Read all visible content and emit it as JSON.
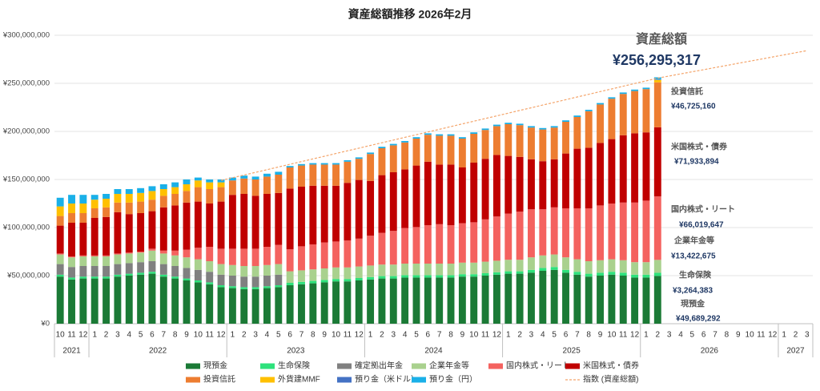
{
  "chart_data": {
    "type": "bar",
    "stacked": true,
    "title": "資産総額推移 2026年2月",
    "categories": [
      "10",
      "11",
      "12",
      "1",
      "2",
      "3",
      "4",
      "5",
      "6",
      "7",
      "8",
      "9",
      "10",
      "11",
      "12",
      "1",
      "2",
      "3",
      "4",
      "5",
      "6",
      "7",
      "8",
      "9",
      "10",
      "11",
      "12",
      "1",
      "2",
      "3",
      "4",
      "5",
      "6",
      "7",
      "8",
      "9",
      "10",
      "11",
      "12",
      "1",
      "2",
      "3",
      "4",
      "5",
      "6",
      "7",
      "8",
      "9",
      "10",
      "11",
      "12",
      "1",
      "2",
      "3",
      "4",
      "5",
      "6",
      "7",
      "8",
      "9",
      "10",
      "11",
      "12",
      "1",
      "2",
      "3"
    ],
    "year_groups": [
      {
        "label": "2021",
        "count": 3
      },
      {
        "label": "2022",
        "count": 12
      },
      {
        "label": "2023",
        "count": 12
      },
      {
        "label": "2024",
        "count": 12
      },
      {
        "label": "2025",
        "count": 12
      },
      {
        "label": "2026",
        "count": 12
      },
      {
        "label": "2027",
        "count": 3
      }
    ],
    "ylim": [
      0,
      300000000
    ],
    "yticks": [
      {
        "value": 0,
        "label": "¥0"
      },
      {
        "value": 50000000,
        "label": "¥50,000,000"
      },
      {
        "value": 100000000,
        "label": "¥100,000,000"
      },
      {
        "value": 150000000,
        "label": "¥150,000,000"
      },
      {
        "value": 200000000,
        "label": "¥200,000,000"
      },
      {
        "value": 250000000,
        "label": "¥250,000,000"
      },
      {
        "value": 300000000,
        "label": "¥300,000,000"
      }
    ],
    "grid": true,
    "legend": "bottom",
    "series": [
      {
        "name": "現預金",
        "color": "#1b7a36",
        "values": [
          49000000,
          46000000,
          47000000,
          47000000,
          47000000,
          49000000,
          50000000,
          51000000,
          52000000,
          49000000,
          47000000,
          45000000,
          43000000,
          41000000,
          38000000,
          37000000,
          36000000,
          36000000,
          37000000,
          38000000,
          40000000,
          41000000,
          42000000,
          43000000,
          44000000,
          44000000,
          45000000,
          46000000,
          47000000,
          47000000,
          48000000,
          48000000,
          48000000,
          48000000,
          48000000,
          49000000,
          49000000,
          50000000,
          51000000,
          52000000,
          52000000,
          53000000,
          55000000,
          56000000,
          53000000,
          51000000,
          49000000,
          50000000,
          51000000,
          50000000,
          48000000,
          48000000,
          49689292,
          null,
          null,
          null,
          null,
          null,
          null,
          null,
          null,
          null,
          null,
          null,
          null,
          null
        ],
        "value_labels": {
          "52": "¥49,689,292"
        }
      },
      {
        "name": "生命保険",
        "color": "#2ee27c",
        "values": [
          2000000,
          2000000,
          2000000,
          2000000,
          2000000,
          2000000,
          2000000,
          2000000,
          2000000,
          2000000,
          2000000,
          2000000,
          2000000,
          2000000,
          2000000,
          2000000,
          2000000,
          2000000,
          2000000,
          2000000,
          2500000,
          2500000,
          2500000,
          2500000,
          2500000,
          2500000,
          2500000,
          2500000,
          2500000,
          2500000,
          2500000,
          2500000,
          2500000,
          2500000,
          2500000,
          2500000,
          2500000,
          2500000,
          2500000,
          2500000,
          2500000,
          3000000,
          3000000,
          3000000,
          3000000,
          3000000,
          3000000,
          3000000,
          3000000,
          3000000,
          3000000,
          3000000,
          3264383,
          null,
          null,
          null,
          null,
          null,
          null,
          null,
          null,
          null,
          null,
          null,
          null,
          null
        ],
        "value_labels": {
          "52": "¥3,264,383"
        }
      },
      {
        "name": "確定拠出年金",
        "color": "#808080",
        "values": [
          11000000,
          11000000,
          11000000,
          11000000,
          11000000,
          11000000,
          11000000,
          11000000,
          11000000,
          11000000,
          11000000,
          11000000,
          11000000,
          11000000,
          11000000,
          11000000,
          11000000,
          11000000,
          11000000,
          11000000,
          0,
          0,
          0,
          0,
          0,
          0,
          0,
          0,
          0,
          0,
          0,
          0,
          0,
          0,
          0,
          0,
          0,
          0,
          0,
          0,
          0,
          0,
          0,
          0,
          0,
          0,
          0,
          0,
          0,
          0,
          0,
          0,
          0,
          null,
          null,
          null,
          null,
          null,
          null,
          null,
          null,
          null,
          null,
          null,
          null,
          null
        ]
      },
      {
        "name": "企業年金等",
        "color": "#a9d18e",
        "values": [
          10000000,
          10000000,
          10000000,
          10000000,
          10000000,
          10000000,
          10000000,
          10000000,
          11000000,
          11000000,
          11000000,
          11000000,
          11000000,
          11000000,
          11000000,
          11000000,
          11000000,
          11000000,
          11000000,
          11000000,
          12000000,
          12000000,
          12000000,
          12000000,
          12000000,
          12000000,
          12000000,
          12000000,
          12000000,
          12000000,
          12000000,
          12000000,
          12000000,
          12000000,
          12000000,
          12000000,
          12000000,
          12000000,
          12000000,
          12000000,
          12000000,
          13000000,
          13000000,
          13000000,
          13000000,
          13000000,
          13000000,
          13000000,
          13000000,
          13000000,
          13000000,
          13000000,
          13422675,
          null,
          null,
          null,
          null,
          null,
          null,
          null,
          null,
          null,
          null,
          null,
          null,
          null
        ],
        "value_labels": {
          "52": "¥13,422,675"
        }
      },
      {
        "name": "国内株式・リート",
        "color": "#f4625f",
        "values": [
          1000000,
          1000000,
          1000000,
          1000000,
          1000000,
          1000000,
          1000000,
          1000000,
          2000000,
          3000000,
          5000000,
          8000000,
          12000000,
          15000000,
          16000000,
          17000000,
          18000000,
          18000000,
          19000000,
          20000000,
          23000000,
          25000000,
          26000000,
          27000000,
          27000000,
          28000000,
          29000000,
          31000000,
          33000000,
          35000000,
          37000000,
          38000000,
          40000000,
          41000000,
          40000000,
          41000000,
          42000000,
          44000000,
          46000000,
          48000000,
          50000000,
          50000000,
          48000000,
          49000000,
          51000000,
          53000000,
          55000000,
          57000000,
          58000000,
          60000000,
          62000000,
          64000000,
          66019647,
          null,
          null,
          null,
          null,
          null,
          null,
          null,
          null,
          null,
          null,
          null,
          null,
          null
        ],
        "value_labels": {
          "52": "¥66,019,647"
        }
      },
      {
        "name": "米国株式・債券",
        "color": "#c00000",
        "values": [
          29000000,
          35000000,
          34000000,
          39000000,
          40000000,
          43000000,
          40000000,
          40000000,
          39000000,
          45000000,
          47000000,
          49000000,
          48000000,
          45000000,
          49000000,
          56000000,
          57000000,
          55000000,
          55000000,
          54000000,
          63000000,
          62000000,
          61000000,
          59000000,
          58000000,
          60000000,
          61000000,
          57000000,
          60000000,
          61000000,
          61000000,
          64000000,
          66000000,
          62000000,
          63000000,
          58000000,
          62000000,
          63000000,
          64000000,
          60000000,
          57000000,
          52000000,
          50000000,
          50000000,
          57000000,
          62000000,
          63000000,
          65000000,
          67000000,
          70000000,
          72000000,
          71000000,
          71933894,
          null,
          null,
          null,
          null,
          null,
          null,
          null,
          null,
          null,
          null,
          null,
          null,
          null
        ],
        "value_labels": {
          "52": "¥71,933,894"
        }
      },
      {
        "name": "投資信託",
        "color": "#ed7d31",
        "values": [
          10000000,
          10000000,
          10000000,
          10000000,
          10000000,
          10000000,
          12000000,
          12000000,
          12000000,
          12000000,
          12000000,
          12000000,
          15000000,
          15000000,
          15000000,
          15000000,
          16000000,
          17000000,
          18000000,
          19000000,
          22000000,
          22000000,
          22000000,
          22000000,
          22000000,
          22000000,
          22000000,
          28000000,
          28000000,
          28000000,
          28000000,
          28000000,
          28000000,
          30000000,
          30000000,
          30000000,
          30000000,
          30000000,
          30000000,
          33000000,
          33000000,
          33000000,
          33000000,
          33000000,
          33000000,
          33000000,
          38000000,
          40000000,
          42000000,
          43000000,
          44000000,
          45000000,
          46725160,
          null,
          null,
          null,
          null,
          null,
          null,
          null,
          null,
          null,
          null,
          null,
          null,
          null
        ],
        "value_labels": {
          "52": "¥46,725,160"
        }
      },
      {
        "name": "外貨建MMF",
        "color": "#ffc000",
        "values": [
          10000000,
          10000000,
          10000000,
          9000000,
          9000000,
          9000000,
          9000000,
          9000000,
          9000000,
          7000000,
          7000000,
          7000000,
          7000000,
          7000000,
          5000000,
          0,
          0,
          0,
          0,
          0,
          0,
          0,
          0,
          0,
          0,
          0,
          0,
          0,
          0,
          0,
          0,
          0,
          0,
          0,
          0,
          0,
          0,
          0,
          0,
          0,
          0,
          0,
          0,
          0,
          0,
          0,
          0,
          0,
          0,
          0,
          0,
          0,
          2500000,
          null,
          null,
          null,
          null,
          null,
          null,
          null,
          null,
          null,
          null,
          null,
          null,
          null
        ]
      },
      {
        "name": "預り金（米ドル）",
        "color": "#4472c4",
        "values": [
          0,
          0,
          0,
          0,
          0,
          0,
          0,
          0,
          0,
          0,
          0,
          0,
          0,
          0,
          0,
          0,
          0,
          0,
          0,
          0,
          0,
          0,
          0,
          0,
          0,
          0,
          0,
          0,
          0,
          0,
          0,
          0,
          0,
          0,
          0,
          0,
          0,
          0,
          0,
          0,
          0,
          0,
          0,
          0,
          0,
          0,
          0,
          0,
          0,
          0,
          0,
          0,
          500000,
          null,
          null,
          null,
          null,
          null,
          null,
          null,
          null,
          null,
          null,
          null,
          null,
          null
        ]
      },
      {
        "name": "預り金（円）",
        "color": "#1ab0e8",
        "values": [
          9000000,
          9000000,
          9000000,
          5000000,
          5000000,
          5000000,
          5000000,
          5000000,
          5000000,
          5000000,
          5000000,
          5000000,
          3000000,
          3000000,
          3000000,
          3000000,
          3000000,
          3000000,
          3000000,
          3000000,
          1500000,
          1500000,
          1500000,
          1500000,
          1500000,
          1500000,
          1500000,
          1500000,
          1500000,
          1500000,
          1500000,
          1500000,
          1500000,
          1500000,
          1500000,
          1500000,
          1500000,
          1500000,
          1500000,
          1500000,
          1500000,
          1500000,
          1500000,
          1500000,
          1500000,
          1500000,
          1500000,
          1500000,
          1500000,
          1500000,
          1500000,
          1500000,
          2240266,
          null,
          null,
          null,
          null,
          null,
          null,
          null,
          null,
          null,
          null,
          null,
          null,
          null
        ]
      },
      {
        "name": "指数 (資産総額)",
        "color": "#f4a46a",
        "type": "line",
        "dashed": true,
        "values": [
          null,
          null,
          null,
          null,
          null,
          null,
          null,
          null,
          null,
          null,
          null,
          null,
          null,
          null,
          149000000,
          151800000,
          154600000,
          157400000,
          160200000,
          163000000,
          165800000,
          168600000,
          171400000,
          174200000,
          177000000,
          179800000,
          182600000,
          185400000,
          188200000,
          191000000,
          193800000,
          196600000,
          199400000,
          202200000,
          205000000,
          207800000,
          210600000,
          213400000,
          216200000,
          219000000,
          221800000,
          224600000,
          227400000,
          230200000,
          233000000,
          235800000,
          238600000,
          241400000,
          244200000,
          247000000,
          249800000,
          252600000,
          255400000,
          257600000,
          259800000,
          262000000,
          264200000,
          266400000,
          268600000,
          270800000,
          273000000,
          275200000,
          277400000,
          279600000,
          281800000,
          284000000
        ]
      }
    ],
    "total": {
      "title": "資産総額",
      "value": 256295317,
      "label": "¥256,295,317"
    }
  }
}
